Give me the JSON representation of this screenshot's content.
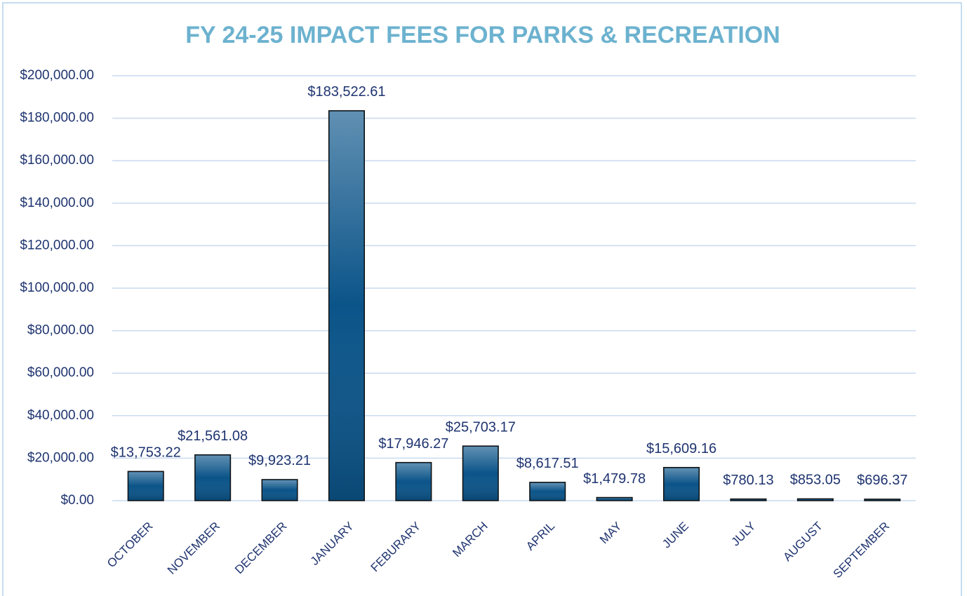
{
  "chart_data": {
    "type": "bar",
    "title": "FY 24-25 IMPACT FEES FOR PARKS & RECREATION",
    "categories": [
      "OCTOBER",
      "NOVEMBER",
      "DECEMBER",
      "JANUARY",
      "FEBURARY",
      "MARCH",
      "APRIL",
      "MAY",
      "JUNE",
      "JULY",
      "AUGUST",
      "SEPTEMBER"
    ],
    "values": [
      13753.22,
      21561.08,
      9923.21,
      183522.61,
      17946.27,
      25703.17,
      8617.51,
      1479.78,
      15609.16,
      780.13,
      853.05,
      696.37
    ],
    "value_labels": [
      "$13,753.22",
      "$21,561.08",
      "$9,923.21",
      "$183,522.61",
      "$17,946.27",
      "$25,703.17",
      "$8,617.51",
      "$1,479.78",
      "$15,609.16",
      "$780.13",
      "$853.05",
      "$696.37"
    ],
    "color": "#0b5489",
    "ylim": [
      0,
      200000
    ],
    "yticks": [
      {
        "value": 0,
        "label": "$0.00"
      },
      {
        "value": 20000,
        "label": "$20,000.00"
      },
      {
        "value": 40000,
        "label": "$40,000.00"
      },
      {
        "value": 60000,
        "label": "$60,000.00"
      },
      {
        "value": 80000,
        "label": "$80,000.00"
      },
      {
        "value": 100000,
        "label": "$100,000.00"
      },
      {
        "value": 120000,
        "label": "$120,000.00"
      },
      {
        "value": 140000,
        "label": "$140,000.00"
      },
      {
        "value": 160000,
        "label": "$160,000.00"
      },
      {
        "value": 180000,
        "label": "$180,000.00"
      },
      {
        "value": 200000,
        "label": "$200,000.00"
      }
    ],
    "grid": true
  }
}
